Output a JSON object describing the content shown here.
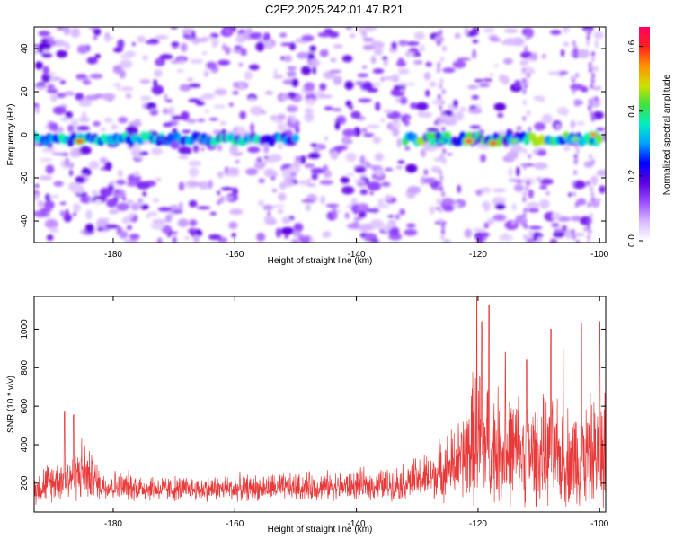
{
  "title": "C2E2.2025.242.01.47.R21",
  "colors": {
    "snr_line": "#e83a3a",
    "axis": "#000000",
    "colormap": [
      "#ffffff",
      "#d8b8ff",
      "#9a4dff",
      "#5b00e0",
      "#0000ff",
      "#00a0ff",
      "#00f0c0",
      "#40e040",
      "#d0e000",
      "#ff9000",
      "#ff2020",
      "#ff0060"
    ]
  },
  "chart_data": [
    {
      "type": "heatmap",
      "xlabel": "Height of straight line (km)",
      "ylabel": "Frequency (Hz)",
      "xlim": [
        -193,
        -99
      ],
      "ylim": [
        -50,
        50
      ],
      "xticks": [
        -180,
        -160,
        -140,
        -120,
        -100
      ],
      "yticks": [
        -40,
        -20,
        0,
        20,
        40
      ],
      "colorbar": {
        "label": "Normalized spectral amplitude",
        "range": [
          0.0,
          0.66
        ],
        "ticks": [
          0.0,
          0.2,
          0.4,
          0.6
        ]
      },
      "description_data": {
        "noise_band_x": [
          -193,
          -130
        ],
        "noise_band_y": [
          -50,
          50
        ],
        "signal_line_frequency": 0,
        "signal_segments": [
          {
            "x_start": -193,
            "x_end": -150,
            "peak_amplitude": 0.45
          },
          {
            "x_start": -132,
            "x_end": -100,
            "peak_amplitude": 0.66
          }
        ],
        "peak_hotspots": [
          {
            "x": -185.5,
            "y": -3,
            "amp": 0.6
          },
          {
            "x": -121.5,
            "y": -3,
            "amp": 0.66
          },
          {
            "x": -117.5,
            "y": -4,
            "amp": 0.62
          },
          {
            "x": -172,
            "y": -2,
            "amp": 0.28
          },
          {
            "x": -165,
            "y": -3,
            "amp": 0.3
          },
          {
            "x": -126,
            "y": -3,
            "amp": 0.4
          },
          {
            "x": -114,
            "y": -3,
            "amp": 0.45
          },
          {
            "x": -104,
            "y": -2,
            "amp": 0.45
          },
          {
            "x": -101,
            "y": 0,
            "amp": 0.55
          }
        ]
      }
    },
    {
      "type": "line",
      "xlabel": "Height of straight line (km)",
      "ylabel": "SNR (10 * v/v)",
      "xlim": [
        -193,
        -99
      ],
      "ylim": [
        50,
        1170
      ],
      "xticks": [
        -180,
        -160,
        -140,
        -120,
        -100
      ],
      "yticks": [
        200,
        400,
        600,
        800,
        1000
      ],
      "series": [
        {
          "name": "SNR",
          "envelope": [
            {
              "x": -193,
              "base": 150,
              "spread": 150
            },
            {
              "x": -188,
              "base": 200,
              "spread": 230
            },
            {
              "x": -185,
              "base": 220,
              "spread": 300
            },
            {
              "x": -182,
              "base": 170,
              "spread": 150
            },
            {
              "x": -170,
              "base": 150,
              "spread": 120
            },
            {
              "x": -150,
              "base": 160,
              "spread": 130
            },
            {
              "x": -135,
              "base": 170,
              "spread": 150
            },
            {
              "x": -128,
              "base": 200,
              "spread": 220
            },
            {
              "x": -123,
              "base": 260,
              "spread": 380
            },
            {
              "x": -120,
              "base": 350,
              "spread": 700
            },
            {
              "x": -117,
              "base": 300,
              "spread": 550
            },
            {
              "x": -110,
              "base": 280,
              "spread": 500
            },
            {
              "x": -105,
              "base": 260,
              "spread": 480
            },
            {
              "x": -99,
              "base": 280,
              "spread": 560
            }
          ],
          "peaks": [
            {
              "x": -188,
              "y": 570
            },
            {
              "x": -186.5,
              "y": 555
            },
            {
              "x": -120.2,
              "y": 1165
            },
            {
              "x": -119.4,
              "y": 1040
            },
            {
              "x": -118.2,
              "y": 1125
            },
            {
              "x": -115.5,
              "y": 880
            },
            {
              "x": -112,
              "y": 840
            },
            {
              "x": -108,
              "y": 1000
            },
            {
              "x": -106,
              "y": 900
            },
            {
              "x": -103,
              "y": 1030
            },
            {
              "x": -100,
              "y": 1040
            }
          ]
        }
      ]
    }
  ]
}
